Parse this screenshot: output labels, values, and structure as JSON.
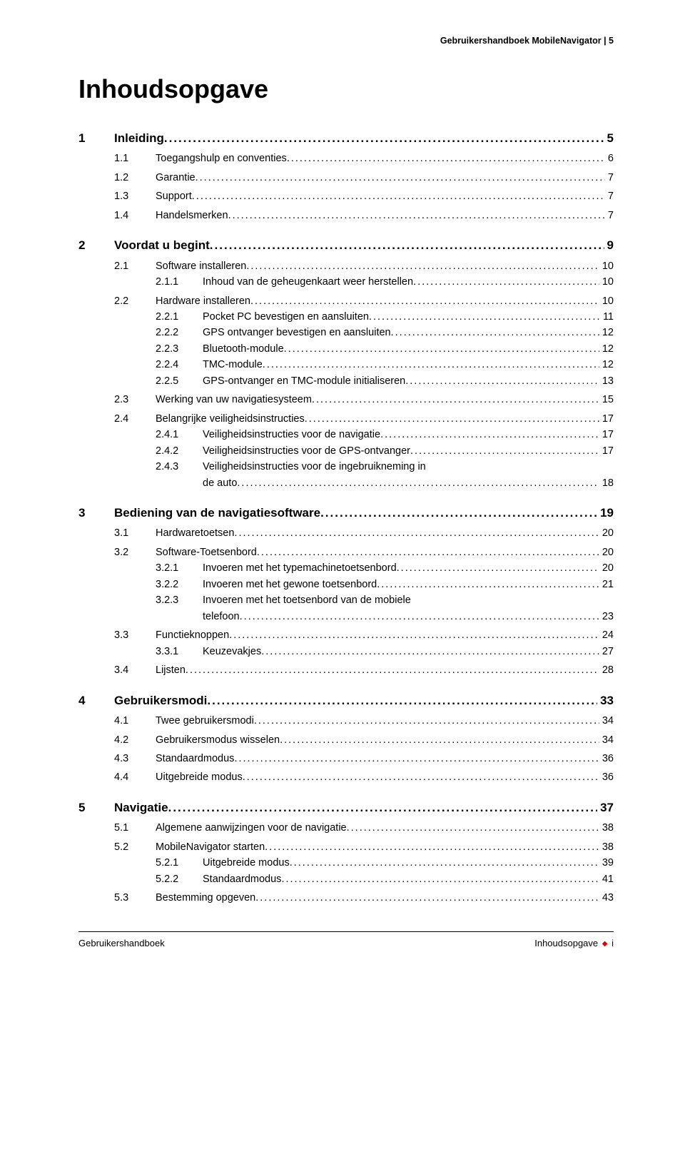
{
  "header": "Gebruikershandboek MobileNavigator | 5",
  "title": "Inhoudsopgave",
  "toc": [
    {
      "level": 1,
      "num": "1",
      "text": "Inleiding",
      "page": "5"
    },
    {
      "level": 2,
      "num": "1.1",
      "text": "Toegangshulp en conventies",
      "page": "6"
    },
    {
      "level": 2,
      "num": "1.2",
      "text": "Garantie",
      "page": "7"
    },
    {
      "level": 2,
      "num": "1.3",
      "text": "Support",
      "page": "7"
    },
    {
      "level": 2,
      "num": "1.4",
      "text": "Handelsmerken",
      "page": "7"
    },
    {
      "level": 1,
      "num": "2",
      "text": "Voordat u begint",
      "page": "9"
    },
    {
      "level": 2,
      "num": "2.1",
      "text": "Software installeren",
      "page": "10"
    },
    {
      "level": 3,
      "num": "2.1.1",
      "text": "Inhoud van de geheugenkaart weer herstellen",
      "page": "10"
    },
    {
      "level": 2,
      "num": "2.2",
      "text": "Hardware installeren",
      "page": "10"
    },
    {
      "level": 3,
      "num": "2.2.1",
      "text": "Pocket PC bevestigen en aansluiten",
      "page": "11"
    },
    {
      "level": 3,
      "num": "2.2.2",
      "text": "GPS ontvanger bevestigen en aansluiten",
      "page": "12"
    },
    {
      "level": 3,
      "num": "2.2.3",
      "text": "Bluetooth-module",
      "page": "12"
    },
    {
      "level": 3,
      "num": "2.2.4",
      "text": "TMC-module",
      "page": "12"
    },
    {
      "level": 3,
      "num": "2.2.5",
      "text": "GPS-ontvanger en TMC-module initialiseren",
      "page": "13"
    },
    {
      "level": 2,
      "num": "2.3",
      "text": "Werking van uw navigatiesysteem",
      "page": "15"
    },
    {
      "level": 2,
      "num": "2.4",
      "text": "Belangrijke veiligheidsinstructies",
      "page": "17"
    },
    {
      "level": 3,
      "num": "2.4.1",
      "text": "Veiligheidsinstructies voor de navigatie",
      "page": "17"
    },
    {
      "level": 3,
      "num": "2.4.2",
      "text": "Veiligheidsinstructies voor de GPS-ontvanger",
      "page": "17"
    },
    {
      "level": 3,
      "num": "2.4.3",
      "text": "Veiligheidsinstructies voor de ingebruikneming in",
      "page": ""
    },
    {
      "level": "3c",
      "num": "",
      "text": "de auto",
      "page": "18"
    },
    {
      "level": 1,
      "num": "3",
      "text": "Bediening van de navigatiesoftware",
      "page": "19"
    },
    {
      "level": 2,
      "num": "3.1",
      "text": "Hardwaretoetsen",
      "page": "20"
    },
    {
      "level": 2,
      "num": "3.2",
      "text": "Software-Toetsenbord",
      "page": "20"
    },
    {
      "level": 3,
      "num": "3.2.1",
      "text": "Invoeren met het typemachinetoetsenbord",
      "page": "20"
    },
    {
      "level": 3,
      "num": "3.2.2",
      "text": "Invoeren met het gewone toetsenbord",
      "page": "21"
    },
    {
      "level": 3,
      "num": "3.2.3",
      "text": "Invoeren met het toetsenbord van de mobiele",
      "page": ""
    },
    {
      "level": "3c",
      "num": "",
      "text": "telefoon",
      "page": "23"
    },
    {
      "level": 2,
      "num": "3.3",
      "text": "Functieknoppen",
      "page": "24"
    },
    {
      "level": 3,
      "num": "3.3.1",
      "text": "Keuzevakjes",
      "page": "27"
    },
    {
      "level": 2,
      "num": "3.4",
      "text": "Lijsten",
      "page": "28"
    },
    {
      "level": 1,
      "num": "4",
      "text": "Gebruikersmodi",
      "page": "33"
    },
    {
      "level": 2,
      "num": "4.1",
      "text": "Twee gebruikersmodi",
      "page": "34"
    },
    {
      "level": 2,
      "num": "4.2",
      "text": "Gebruikersmodus wisselen",
      "page": "34"
    },
    {
      "level": 2,
      "num": "4.3",
      "text": "Standaardmodus",
      "page": "36"
    },
    {
      "level": 2,
      "num": "4.4",
      "text": "Uitgebreide modus",
      "page": "36"
    },
    {
      "level": 1,
      "num": "5",
      "text": "Navigatie",
      "page": "37"
    },
    {
      "level": 2,
      "num": "5.1",
      "text": "Algemene aanwijzingen voor de navigatie",
      "page": "38"
    },
    {
      "level": 2,
      "num": "5.2",
      "text": "MobileNavigator starten",
      "page": "38"
    },
    {
      "level": 3,
      "num": "5.2.1",
      "text": "Uitgebreide modus",
      "page": "39"
    },
    {
      "level": 3,
      "num": "5.2.2",
      "text": "Standaardmodus",
      "page": "41"
    },
    {
      "level": 2,
      "num": "5.3",
      "text": "Bestemming opgeven",
      "page": "43"
    }
  ],
  "footer": {
    "left": "Gebruikershandboek",
    "right_label": "Inhoudsopgave",
    "right_page": "i"
  }
}
